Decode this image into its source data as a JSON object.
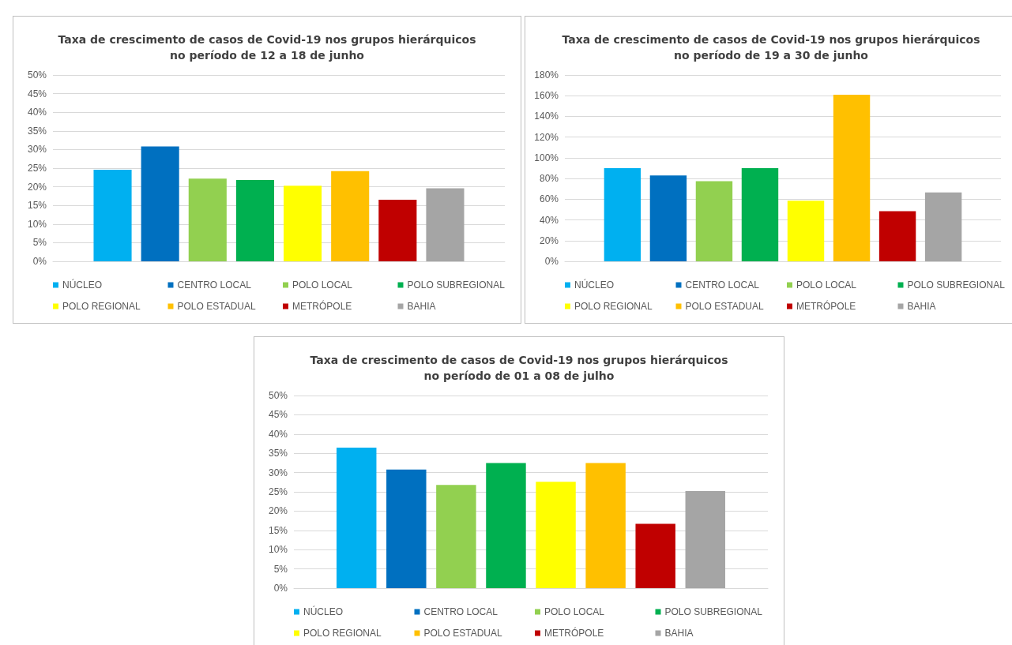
{
  "chart_data": [
    {
      "type": "bar",
      "title": "Taxa de crescimento de casos de Covid-19 nos grupos hierárquicos\nno período de 12 a 18 de junho",
      "categories": [
        null
      ],
      "series": [
        {
          "name": "NÚCLEO",
          "color": "#00b0f0",
          "values": [
            24.6
          ]
        },
        {
          "name": "CENTRO LOCAL",
          "color": "#0070c0",
          "values": [
            30.8
          ]
        },
        {
          "name": "POLO LOCAL",
          "color": "#92d050",
          "values": [
            22.2
          ]
        },
        {
          "name": "POLO SUBREGIONAL",
          "color": "#00b050",
          "values": [
            21.8
          ]
        },
        {
          "name": "POLO REGIONAL",
          "color": "#ffff00",
          "values": [
            20.3
          ]
        },
        {
          "name": "POLO ESTADUAL",
          "color": "#ffc000",
          "values": [
            24.2
          ]
        },
        {
          "name": "METRÓPOLE",
          "color": "#c00000",
          "values": [
            16.5
          ]
        },
        {
          "name": "BAHIA",
          "color": "#a5a5a5",
          "values": [
            19.6
          ]
        }
      ],
      "ylim": [
        0,
        50
      ],
      "yticks": [
        {
          "value": 0,
          "label": "0%"
        },
        {
          "value": 5,
          "label": "5%"
        },
        {
          "value": 10,
          "label": "10%"
        },
        {
          "value": 15,
          "label": "15%"
        },
        {
          "value": 20,
          "label": "20%"
        },
        {
          "value": 25,
          "label": "25%"
        },
        {
          "value": 30,
          "label": "30%"
        },
        {
          "value": 35,
          "label": "35%"
        },
        {
          "value": 40,
          "label": "40%"
        },
        {
          "value": 45,
          "label": "45%"
        },
        {
          "value": 50,
          "label": "50%"
        }
      ],
      "grid": "y",
      "legend": "bottom"
    },
    {
      "type": "bar",
      "title": "Taxa de crescimento de casos de Covid-19 nos grupos hierárquicos\nno período de 19 a 30 de junho",
      "categories": [
        null
      ],
      "series": [
        {
          "name": "NÚCLEO",
          "color": "#00b0f0",
          "values": [
            90
          ]
        },
        {
          "name": "CENTRO LOCAL",
          "color": "#0070c0",
          "values": [
            83
          ]
        },
        {
          "name": "POLO LOCAL",
          "color": "#92d050",
          "values": [
            77.5
          ]
        },
        {
          "name": "POLO SUBREGIONAL",
          "color": "#00b050",
          "values": [
            90
          ]
        },
        {
          "name": "POLO REGIONAL",
          "color": "#ffff00",
          "values": [
            58.5
          ]
        },
        {
          "name": "POLO ESTADUAL",
          "color": "#ffc000",
          "values": [
            161
          ]
        },
        {
          "name": "METRÓPOLE",
          "color": "#c00000",
          "values": [
            48.5
          ]
        },
        {
          "name": "BAHIA",
          "color": "#a5a5a5",
          "values": [
            66.5
          ]
        }
      ],
      "ylim": [
        0,
        180
      ],
      "yticks": [
        {
          "value": 0,
          "label": "0%"
        },
        {
          "value": 20,
          "label": "20%"
        },
        {
          "value": 40,
          "label": "40%"
        },
        {
          "value": 60,
          "label": "60%"
        },
        {
          "value": 80,
          "label": "80%"
        },
        {
          "value": 100,
          "label": "100%"
        },
        {
          "value": 120,
          "label": "120%"
        },
        {
          "value": 140,
          "label": "140%"
        },
        {
          "value": 160,
          "label": "160%"
        },
        {
          "value": 180,
          "label": "180%"
        }
      ],
      "grid": "y",
      "legend": "bottom"
    },
    {
      "type": "bar",
      "title": "Taxa de crescimento de casos de Covid-19 nos grupos hierárquicos\nno período de 01 a 08 de julho",
      "categories": [
        null
      ],
      "series": [
        {
          "name": "NÚCLEO",
          "color": "#00b0f0",
          "values": [
            36.5
          ]
        },
        {
          "name": "CENTRO LOCAL",
          "color": "#0070c0",
          "values": [
            30.8
          ]
        },
        {
          "name": "POLO LOCAL",
          "color": "#92d050",
          "values": [
            26.8
          ]
        },
        {
          "name": "POLO SUBREGIONAL",
          "color": "#00b050",
          "values": [
            32.5
          ]
        },
        {
          "name": "POLO REGIONAL",
          "color": "#ffff00",
          "values": [
            27.6
          ]
        },
        {
          "name": "POLO ESTADUAL",
          "color": "#ffc000",
          "values": [
            32.5
          ]
        },
        {
          "name": "METRÓPOLE",
          "color": "#c00000",
          "values": [
            16.7
          ]
        },
        {
          "name": "BAHIA",
          "color": "#a5a5a5",
          "values": [
            25.2
          ]
        }
      ],
      "ylim": [
        0,
        50
      ],
      "yticks": [
        {
          "value": 0,
          "label": "0%"
        },
        {
          "value": 5,
          "label": "5%"
        },
        {
          "value": 10,
          "label": "10%"
        },
        {
          "value": 15,
          "label": "15%"
        },
        {
          "value": 20,
          "label": "20%"
        },
        {
          "value": 25,
          "label": "25%"
        },
        {
          "value": 30,
          "label": "30%"
        },
        {
          "value": 35,
          "label": "35%"
        },
        {
          "value": 40,
          "label": "40%"
        },
        {
          "value": 45,
          "label": "45%"
        },
        {
          "value": 50,
          "label": "50%"
        }
      ],
      "grid": "y",
      "legend": "bottom"
    }
  ]
}
